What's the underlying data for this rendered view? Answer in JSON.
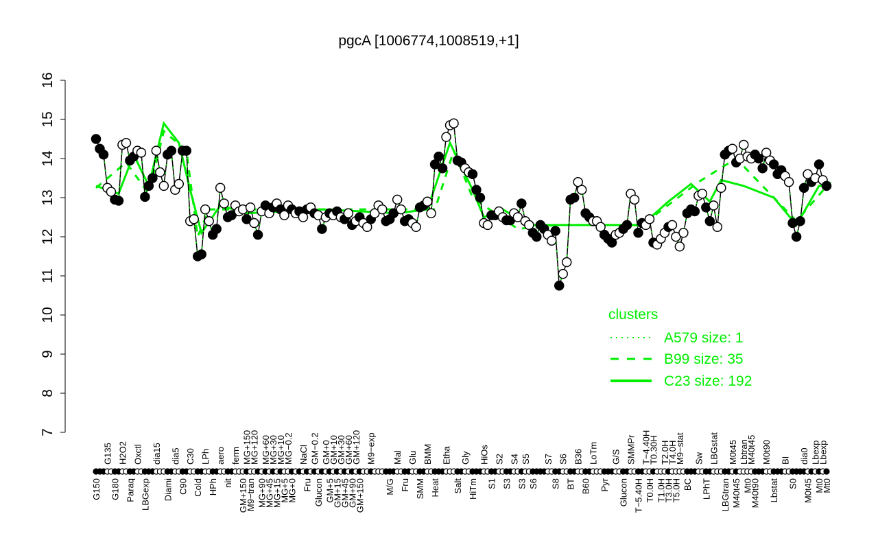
{
  "chart_data": {
    "type": "line",
    "title": "pgcA [1006774,1008519,+1]",
    "xlabel": "",
    "ylabel": "",
    "ylim": [
      7,
      16
    ],
    "yticks": [
      7,
      8,
      9,
      10,
      11,
      12,
      13,
      14,
      15,
      16
    ],
    "grid": false,
    "legend": {
      "title": "clusters",
      "placement": "bottom-right",
      "entries": [
        {
          "label": "A579 size: 1",
          "style": "dotted"
        },
        {
          "label": "B99 size: 35",
          "style": "dashed"
        },
        {
          "label": "C23 size: 192",
          "style": "solid"
        }
      ]
    },
    "colors": {
      "cluster": "#00ee00",
      "points": "#000000"
    },
    "points": [
      [
        "G150",
        14.5,
        1
      ],
      [
        "",
        14.25,
        1
      ],
      [
        "",
        14.1,
        1
      ],
      [
        "G135",
        13.25,
        0
      ],
      [
        "",
        13.15,
        0
      ],
      [
        "G180",
        12.95,
        1
      ],
      [
        "",
        12.92,
        1
      ],
      [
        "H2O2",
        14.35,
        0
      ],
      [
        "",
        14.4,
        0
      ],
      [
        "Paraq",
        13.95,
        1
      ],
      [
        "",
        14.05,
        1
      ],
      [
        "Oxctl",
        14.2,
        0
      ],
      [
        "",
        14.15,
        0
      ],
      [
        "LBGexp",
        13.02,
        1
      ],
      [
        "",
        13.3,
        1
      ],
      [
        "",
        13.5,
        1
      ],
      [
        "dia15",
        14.2,
        0
      ],
      [
        "",
        13.65,
        0
      ],
      [
        "",
        13.3,
        0
      ],
      [
        "Diami",
        14.1,
        1
      ],
      [
        "",
        14.2,
        1
      ],
      [
        "dia5",
        13.2,
        0
      ],
      [
        "",
        13.35,
        0
      ],
      [
        "C90",
        14.2,
        1
      ],
      [
        "",
        14.2,
        1
      ],
      [
        "C30",
        12.4,
        0
      ],
      [
        "",
        12.45,
        0
      ],
      [
        "Cold",
        11.5,
        1
      ],
      [
        "",
        11.55,
        1
      ],
      [
        "LPh",
        12.7,
        0
      ],
      [
        "",
        12.4,
        0
      ],
      [
        "HPh",
        12.05,
        1
      ],
      [
        "",
        12.2,
        1
      ],
      [
        "aero",
        13.25,
        0
      ],
      [
        "",
        12.85,
        0
      ],
      [
        "nit",
        12.5,
        1
      ],
      [
        "",
        12.55,
        1
      ],
      [
        "ferm",
        12.8,
        0
      ],
      [
        "",
        12.65,
        0
      ],
      [
        "GM+150",
        12.7,
        0
      ],
      [
        "MG+150",
        12.45,
        1
      ],
      [
        "M9−tran",
        12.75,
        0
      ],
      [
        "MG+120",
        12.35,
        0
      ],
      [
        "",
        12.05,
        1
      ],
      [
        "MG+90",
        12.65,
        0
      ],
      [
        "MG+60",
        12.8,
        1
      ],
      [
        "MG+45",
        12.6,
        0
      ],
      [
        "MG+30",
        12.75,
        1
      ],
      [
        "MG+15",
        12.85,
        0
      ],
      [
        "MG+10",
        12.7,
        1
      ],
      [
        "MG+5",
        12.55,
        0
      ],
      [
        "MG−0.2",
        12.8,
        0
      ],
      [
        "MG+0",
        12.7,
        1
      ],
      [
        "",
        12.6,
        0
      ],
      [
        "",
        12.65,
        1
      ],
      [
        "NaCl",
        12.5,
        0
      ],
      [
        "Fru",
        12.7,
        1
      ],
      [
        "",
        12.75,
        0
      ],
      [
        "GM−0.2",
        12.6,
        1
      ],
      [
        "Glucon",
        12.55,
        0
      ],
      [
        "",
        12.2,
        1
      ],
      [
        "GM+0",
        12.5,
        0
      ],
      [
        "GM+5",
        12.6,
        1
      ],
      [
        "GM+10",
        12.55,
        0
      ],
      [
        "GM+15",
        12.65,
        1
      ],
      [
        "GM+30",
        12.5,
        0
      ],
      [
        "GM+45",
        12.45,
        1
      ],
      [
        "GM+60",
        12.6,
        0
      ],
      [
        "GM+90",
        12.3,
        1
      ],
      [
        "GM+120",
        12.4,
        0
      ],
      [
        "GM+150",
        12.5,
        1
      ],
      [
        "",
        12.35,
        0
      ],
      [
        "",
        12.25,
        0
      ],
      [
        "M9−exp",
        12.45,
        1
      ],
      [
        "",
        12.6,
        0
      ],
      [
        "",
        12.8,
        0
      ],
      [
        "",
        12.7,
        0
      ],
      [
        "",
        12.4,
        1
      ],
      [
        "M/G",
        12.45,
        1
      ],
      [
        "",
        12.6,
        1
      ],
      [
        "Mal",
        12.95,
        0
      ],
      [
        "",
        12.7,
        0
      ],
      [
        "Fru",
        12.4,
        1
      ],
      [
        "",
        12.45,
        1
      ],
      [
        "Glu",
        12.35,
        0
      ],
      [
        "",
        12.25,
        0
      ],
      [
        "SMM",
        12.75,
        1
      ],
      [
        "",
        12.8,
        1
      ],
      [
        "BMM",
        12.9,
        0
      ],
      [
        "",
        12.6,
        0
      ],
      [
        "Heat",
        13.85,
        1
      ],
      [
        "",
        14.05,
        1
      ],
      [
        "",
        13.75,
        1
      ],
      [
        "Etha",
        14.55,
        0
      ],
      [
        "",
        14.85,
        0
      ],
      [
        "",
        14.9,
        0
      ],
      [
        "Salt",
        13.95,
        1
      ],
      [
        "",
        13.9,
        1
      ],
      [
        "Gly",
        13.75,
        0
      ],
      [
        "",
        13.65,
        0
      ],
      [
        "HiTm",
        13.6,
        1
      ],
      [
        "",
        13.2,
        1
      ],
      [
        "",
        13.0,
        1
      ],
      [
        "HiOs",
        12.35,
        0
      ],
      [
        "",
        12.3,
        0
      ],
      [
        "S1",
        12.55,
        1
      ],
      [
        "",
        12.55,
        1
      ],
      [
        "S2",
        12.65,
        0
      ],
      [
        "",
        12.5,
        0
      ],
      [
        "S3",
        12.42,
        1
      ],
      [
        "",
        12.42,
        1
      ],
      [
        "S4",
        12.6,
        0
      ],
      [
        "",
        12.5,
        0
      ],
      [
        "S3",
        12.85,
        1
      ],
      [
        "S5",
        12.4,
        0
      ],
      [
        "",
        12.3,
        0
      ],
      [
        "S6",
        12.1,
        1
      ],
      [
        "",
        12.0,
        1
      ],
      [
        "",
        12.3,
        1
      ],
      [
        "",
        12.2,
        1
      ],
      [
        "S7",
        12.05,
        0
      ],
      [
        "",
        11.9,
        0
      ],
      [
        "S8",
        12.15,
        1
      ],
      [
        "",
        10.75,
        1
      ],
      [
        "S6",
        11.05,
        0
      ],
      [
        "",
        11.35,
        0
      ],
      [
        "BT",
        12.95,
        1
      ],
      [
        "",
        13.0,
        1
      ],
      [
        "B36",
        13.4,
        0
      ],
      [
        "",
        13.2,
        0
      ],
      [
        "B60",
        12.6,
        1
      ],
      [
        "",
        12.5,
        1
      ],
      [
        "LoTm",
        12.4,
        0
      ],
      [
        "",
        12.4,
        0
      ],
      [
        "",
        12.25,
        0
      ],
      [
        "Pyr",
        12.05,
        1
      ],
      [
        "",
        11.95,
        1
      ],
      [
        "",
        11.85,
        1
      ],
      [
        "G/S",
        12.05,
        0
      ],
      [
        "",
        12.1,
        0
      ],
      [
        "Glucon",
        12.2,
        1
      ],
      [
        "",
        12.3,
        1
      ],
      [
        "SMMPr",
        13.1,
        0
      ],
      [
        "",
        12.95,
        0
      ],
      [
        "T−5.40H",
        12.1,
        1
      ],
      [
        "",
        12.35,
        1
      ],
      [
        "T−4.40H",
        12.3,
        0
      ],
      [
        "T0.0H",
        12.45,
        0
      ],
      [
        "T0.30H",
        11.85,
        1
      ],
      [
        "",
        11.8,
        0
      ],
      [
        "T1.0H",
        11.95,
        0
      ],
      [
        "T2.0H",
        12.1,
        0
      ],
      [
        "T3.0H",
        12.25,
        1
      ],
      [
        "T4.0H",
        12.3,
        0
      ],
      [
        "T5.0H",
        12.0,
        0
      ],
      [
        "M9−stat",
        11.75,
        0
      ],
      [
        "",
        12.1,
        0
      ],
      [
        "BC",
        12.6,
        1
      ],
      [
        "",
        12.7,
        1
      ],
      [
        "",
        12.65,
        1
      ],
      [
        "Sw",
        13.05,
        0
      ],
      [
        "",
        13.1,
        0
      ],
      [
        "LPhT",
        12.75,
        1
      ],
      [
        "",
        12.4,
        1
      ],
      [
        "LBGstat",
        12.8,
        0
      ],
      [
        "",
        12.25,
        0
      ],
      [
        "",
        13.25,
        0
      ],
      [
        "LBGtran",
        14.1,
        1
      ],
      [
        "",
        14.2,
        1
      ],
      [
        "M0t45",
        14.25,
        0
      ],
      [
        "M40t45",
        13.9,
        1
      ],
      [
        "",
        14.0,
        0
      ],
      [
        "Lbtran",
        14.35,
        0
      ],
      [
        "Mt0",
        14.05,
        0
      ],
      [
        "M40t45",
        14.0,
        0
      ],
      [
        "M40t90",
        14.1,
        1
      ],
      [
        "",
        14.0,
        1
      ],
      [
        "",
        13.75,
        1
      ],
      [
        "M0t90",
        14.15,
        0
      ],
      [
        "",
        13.95,
        0
      ],
      [
        "Lbstat",
        13.85,
        1
      ],
      [
        "",
        13.6,
        1
      ],
      [
        "",
        13.7,
        1
      ],
      [
        "BI",
        13.55,
        0
      ],
      [
        "",
        13.4,
        0
      ],
      [
        "S0",
        12.35,
        1
      ],
      [
        "",
        12.0,
        1
      ],
      [
        "",
        12.4,
        1
      ],
      [
        "dia0",
        13.25,
        1
      ],
      [
        "M0t45",
        13.6,
        0
      ],
      [
        "",
        13.4,
        1
      ],
      [
        "Lbexp",
        13.5,
        0
      ],
      [
        "Mt0",
        13.85,
        1
      ],
      [
        "Lbexp",
        13.45,
        0
      ],
      [
        "Mt0",
        13.3,
        1
      ]
    ],
    "c23_anchors": [
      [
        0,
        13.3
      ],
      [
        6,
        13.1
      ],
      [
        10,
        14.1
      ],
      [
        14,
        13.3
      ],
      [
        18,
        14.9
      ],
      [
        22,
        14.4
      ],
      [
        25,
        13.2
      ],
      [
        28,
        12.1
      ],
      [
        33,
        12.8
      ],
      [
        40,
        12.6
      ],
      [
        60,
        12.7
      ],
      [
        80,
        12.6
      ],
      [
        88,
        12.7
      ],
      [
        94,
        14.4
      ],
      [
        100,
        13.2
      ],
      [
        103,
        12.5
      ],
      [
        108,
        12.7
      ],
      [
        115,
        12.3
      ],
      [
        125,
        12.3
      ],
      [
        135,
        12.3
      ],
      [
        145,
        12.3
      ],
      [
        152,
        12.9
      ],
      [
        158,
        13.35
      ],
      [
        163,
        12.9
      ],
      [
        166,
        13.45
      ],
      [
        172,
        13.3
      ],
      [
        180,
        13.0
      ],
      [
        186,
        12.3
      ],
      [
        192,
        13.3
      ],
      [
        195,
        13.3
      ]
    ],
    "b99_anchors": [
      [
        0,
        13.25
      ],
      [
        8,
        13.9
      ],
      [
        14,
        13.1
      ],
      [
        18,
        14.7
      ],
      [
        24,
        14.2
      ],
      [
        27,
        12.0
      ],
      [
        30,
        12.7
      ],
      [
        90,
        12.7
      ],
      [
        95,
        14.2
      ],
      [
        100,
        13.0
      ],
      [
        112,
        12.2
      ],
      [
        122,
        12.3
      ],
      [
        145,
        12.3
      ],
      [
        160,
        13.4
      ],
      [
        170,
        14.0
      ],
      [
        186,
        12.4
      ],
      [
        195,
        13.4
      ]
    ]
  }
}
